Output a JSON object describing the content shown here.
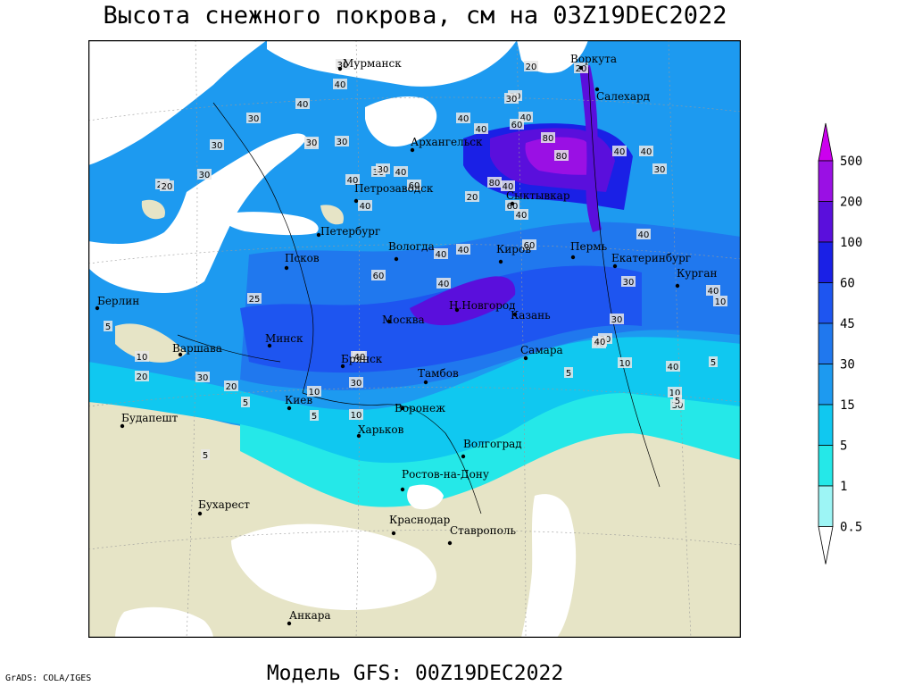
{
  "title": "Высота снежного покрова, см на 03Z19DEC2022",
  "subtitle": "Модель GFS: 00Z19DEC2022",
  "credit": "GrADS: COLA/IGES",
  "colors": {
    "ocean": "#ffffff",
    "land_no_snow": "#e6e4c6",
    "snow_0_5": "#9df5f5",
    "snow_1": "#25e8e8",
    "snow_5": "#10c8f0",
    "snow_15": "#1d9af0",
    "snow_30": "#2078ee",
    "snow_45": "#1e55f0",
    "snow_60": "#1a20e6",
    "snow_100": "#5a0fdc",
    "snow_200": "#9a10e4",
    "snow_500": "#cc00ee"
  },
  "legend": {
    "labels": [
      "500",
      "200",
      "100",
      "60",
      "45",
      "30",
      "15",
      "5",
      "1",
      "0.5"
    ]
  },
  "cities": [
    {
      "name": "Мурманск"
    },
    {
      "name": "Воркута"
    },
    {
      "name": "Салехард"
    },
    {
      "name": "Архангельск"
    },
    {
      "name": "Сыктывкар"
    },
    {
      "name": "Петрозаводск"
    },
    {
      "name": "Петербург"
    },
    {
      "name": "Вологда"
    },
    {
      "name": "Киров"
    },
    {
      "name": "Пермь"
    },
    {
      "name": "Екатеринбург"
    },
    {
      "name": "Курган"
    },
    {
      "name": "Псков"
    },
    {
      "name": "Н.Новгород"
    },
    {
      "name": "Москва"
    },
    {
      "name": "Казань"
    },
    {
      "name": "Берлин"
    },
    {
      "name": "Минск"
    },
    {
      "name": "Варшава"
    },
    {
      "name": "Самара"
    },
    {
      "name": "Брянск"
    },
    {
      "name": "Тамбов"
    },
    {
      "name": "Киев"
    },
    {
      "name": "Воронеж"
    },
    {
      "name": "Будапешт"
    },
    {
      "name": "Харьков"
    },
    {
      "name": "Волгоград"
    },
    {
      "name": "Ростов-на-Дону"
    },
    {
      "name": "Бухарест"
    },
    {
      "name": "Краснодар"
    },
    {
      "name": "Ставрополь"
    },
    {
      "name": "Анкара"
    }
  ],
  "contour_labels": [
    "20",
    "40",
    "30",
    "30",
    "40",
    "30",
    "30",
    "30",
    "30",
    "30",
    "20",
    "30",
    "40",
    "20",
    "30",
    "30",
    "20",
    "30",
    "40",
    "40",
    "60",
    "80",
    "80",
    "40",
    "40",
    "30",
    "40",
    "40",
    "40",
    "60",
    "20",
    "80",
    "40",
    "60",
    "40",
    "60",
    "40",
    "60",
    "40",
    "40",
    "30",
    "40",
    "40",
    "10",
    "5",
    "10",
    "20",
    "30",
    "20",
    "40",
    "30",
    "5",
    "10",
    "25",
    "5",
    "10",
    "40",
    "30",
    "40",
    "5",
    "40",
    "10",
    "20",
    "5",
    "40",
    "10",
    "30",
    "5",
    "5"
  ]
}
